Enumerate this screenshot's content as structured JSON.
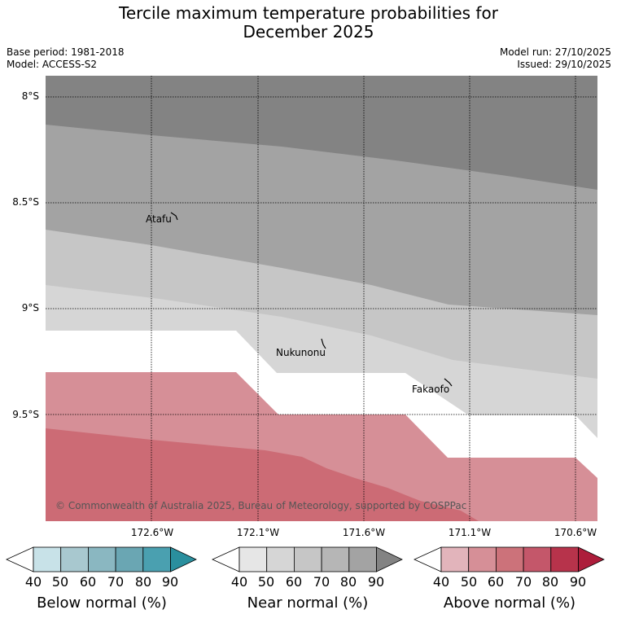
{
  "title_line1": "Tercile maximum temperature probabilities for",
  "title_line2": "December 2025",
  "base_period": "Base period: 1981-2018",
  "model": "Model: ACCESS-S2",
  "model_run": "Model run: 27/10/2025",
  "issued": "Issued: 29/10/2025",
  "lat_labels": [
    "8°S",
    "8.5°S",
    "9°S",
    "9.5°S"
  ],
  "lon_labels": [
    "172.6°W",
    "172.1°W",
    "171.6°W",
    "171.1°W",
    "170.6°W"
  ],
  "islands": [
    "Atafu",
    "Nukunonu",
    "Fakaofo"
  ],
  "copyright": "© Commonwealth of Australia 2025, Bureau of Meteorology, supported by COSPPac",
  "colorbars": [
    {
      "title": "Below normal (%)",
      "ticks": [
        "40",
        "50",
        "60",
        "70",
        "80",
        "90"
      ],
      "colors": [
        "#c8e2e8",
        "#a8c8cf",
        "#8ab7c1",
        "#6aa6b3",
        "#4aa0b0",
        "#2a8f9e"
      ]
    },
    {
      "title": "Near normal (%)",
      "ticks": [
        "40",
        "50",
        "60",
        "70",
        "80",
        "90"
      ],
      "colors": [
        "#e6e6e6",
        "#d6d6d6",
        "#c6c6c6",
        "#b6b6b6",
        "#a3a3a3",
        "#838383"
      ]
    },
    {
      "title": "Above normal (%)",
      "ticks": [
        "40",
        "50",
        "60",
        "70",
        "80",
        "90"
      ],
      "colors": [
        "#e2b4bb",
        "#d68f97",
        "#cc727a",
        "#c4576a",
        "#b7334b",
        "#ad1d3b"
      ]
    }
  ],
  "colors": {
    "near_90": "#838383",
    "near_80": "#a3a3a3",
    "near_70": "#c6c6c6",
    "near_60": "#d6d6d6",
    "above_50": "#d68f97",
    "above_60": "#cc6b75"
  }
}
